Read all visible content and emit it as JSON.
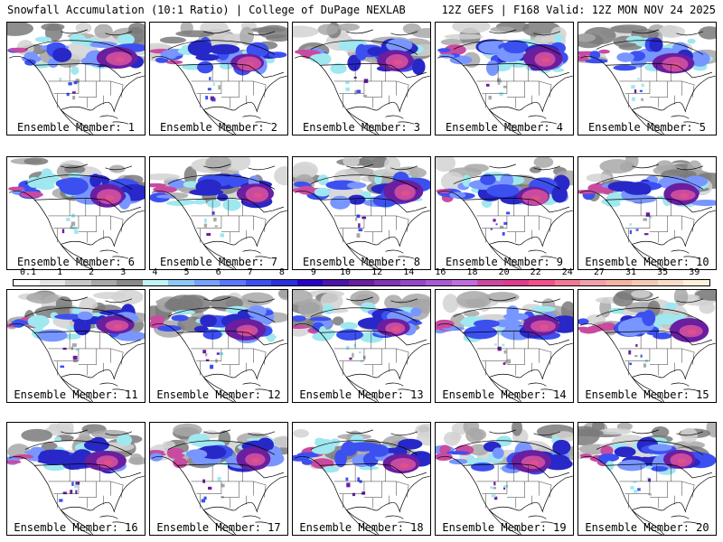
{
  "header": {
    "left_title": "Snowfall Accumulation (10:1 Ratio) | College of DuPage NEXLAB",
    "right_title": "12Z GEFS | F168 Valid: 12Z MON NOV 24 2025"
  },
  "members": [
    {
      "label": "Ensemble Member: 1"
    },
    {
      "label": "Ensemble Member: 2"
    },
    {
      "label": "Ensemble Member: 3"
    },
    {
      "label": "Ensemble Member: 4"
    },
    {
      "label": "Ensemble Member: 5"
    },
    {
      "label": "Ensemble Member: 6"
    },
    {
      "label": "Ensemble Member: 7"
    },
    {
      "label": "Ensemble Member: 8"
    },
    {
      "label": "Ensemble Member: 9"
    },
    {
      "label": "Ensemble Member: 10"
    },
    {
      "label": "Ensemble Member: 11"
    },
    {
      "label": "Ensemble Member: 12"
    },
    {
      "label": "Ensemble Member: 13"
    },
    {
      "label": "Ensemble Member: 14"
    },
    {
      "label": "Ensemble Member: 15"
    },
    {
      "label": "Ensemble Member: 16"
    },
    {
      "label": "Ensemble Member: 17"
    },
    {
      "label": "Ensemble Member: 18"
    },
    {
      "label": "Ensemble Member: 19"
    },
    {
      "label": "Ensemble Member: 20"
    }
  ],
  "colorbar": {
    "labels": [
      "0.1",
      "1",
      "2",
      "3",
      "4",
      "5",
      "6",
      "7",
      "8",
      "9",
      "10",
      "12",
      "14",
      "16",
      "18",
      "20",
      "22",
      "24",
      "27",
      "31",
      "35",
      "39"
    ],
    "colors": [
      "#ffffff",
      "#e6e6e6",
      "#c8c8c8",
      "#a8a8a8",
      "#8a8a8a",
      "#bff5f5",
      "#8cc8f5",
      "#78a0ff",
      "#5a78ff",
      "#3c50f0",
      "#2830dc",
      "#2800c8",
      "#4c14a8",
      "#6a1ea0",
      "#8232b4",
      "#9646c8",
      "#aa5ad2",
      "#be6edc",
      "#c84ba0",
      "#dc3c8c",
      "#f0508c",
      "#f07896",
      "#f0a0aa",
      "#f5b4a0",
      "#f5c8b4",
      "#fadcc8",
      "#fff0dc"
    ]
  },
  "map_colors": {
    "land": "#ffffff",
    "grey_light": "#d2d2d2",
    "grey_mid": "#a8a8a8",
    "grey_dark": "#7a7a7a",
    "cyan": "#9fe8f0",
    "blue_light": "#7896ff",
    "blue": "#3c50f0",
    "blue_dark": "#2828c8",
    "purple": "#6a1ea0",
    "magenta": "#c84ba0",
    "pink": "#e0508c",
    "outline": "#000000"
  }
}
